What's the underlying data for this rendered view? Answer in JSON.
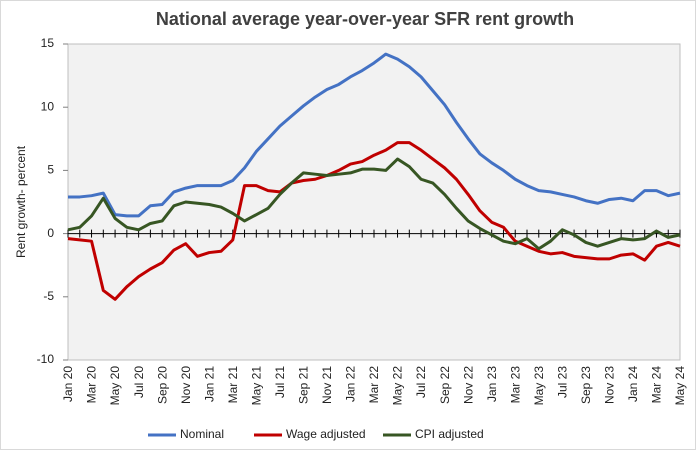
{
  "chart_data": {
    "type": "line",
    "title": "National average year-over-year SFR rent growth",
    "y_label": "Rent growth- percent",
    "categories": [
      "Jan 20",
      null,
      "Mar 20",
      null,
      "May 20",
      null,
      "Jul 20",
      null,
      "Sep 20",
      null,
      "Nov 20",
      null,
      "Jan 21",
      null,
      "Mar 21",
      null,
      "May 21",
      null,
      "Jul 21",
      null,
      "Sep 21",
      null,
      "Nov 21",
      null,
      "Jan 22",
      null,
      "Mar 22",
      null,
      "May 22",
      null,
      "Jul 22",
      null,
      "Sep 22",
      null,
      "Nov 22",
      null,
      "Jan 23",
      null,
      "Mar 23",
      null,
      "May 23",
      null,
      "Jul 23",
      null,
      "Sep 23",
      null,
      "Nov 23",
      null,
      "Jan 24",
      null,
      "Mar 24",
      null,
      "May 24"
    ],
    "series": [
      {
        "name": "Nominal",
        "color": "#4472c4",
        "values": [
          2.9,
          2.9,
          3.0,
          3.2,
          1.5,
          1.4,
          1.4,
          2.2,
          2.3,
          3.3,
          3.6,
          3.8,
          3.8,
          3.8,
          4.2,
          5.2,
          6.5,
          7.5,
          8.5,
          9.3,
          10.1,
          10.8,
          11.4,
          11.8,
          12.4,
          12.9,
          13.5,
          14.2,
          13.8,
          13.2,
          12.4,
          11.3,
          10.2,
          8.8,
          7.5,
          6.3,
          5.6,
          5.0,
          4.3,
          3.8,
          3.4,
          3.3,
          3.1,
          2.9,
          2.6,
          2.4,
          2.7,
          2.8,
          2.6,
          3.4,
          3.4,
          3.0,
          3.2
        ]
      },
      {
        "name": "Wage adjusted",
        "color": "#c00000",
        "values": [
          -0.4,
          -0.5,
          -0.6,
          -4.5,
          -5.2,
          -4.2,
          -3.4,
          -2.8,
          -2.3,
          -1.3,
          -0.8,
          -1.8,
          -1.5,
          -1.4,
          -0.5,
          3.8,
          3.8,
          3.4,
          3.3,
          4.0,
          4.2,
          4.3,
          4.6,
          5.0,
          5.5,
          5.7,
          6.2,
          6.6,
          7.2,
          7.2,
          6.6,
          5.9,
          5.2,
          4.3,
          3.1,
          1.8,
          0.9,
          0.5,
          -0.6,
          -1.0,
          -1.4,
          -1.6,
          -1.5,
          -1.8,
          -1.9,
          -2.0,
          -2.0,
          -1.7,
          -1.6,
          -2.1,
          -1.0,
          -0.7,
          -1.0
        ]
      },
      {
        "name": "CPI adjusted",
        "color": "#375623",
        "values": [
          0.3,
          0.5,
          1.4,
          2.8,
          1.2,
          0.5,
          0.3,
          0.8,
          1.0,
          2.2,
          2.5,
          2.4,
          2.3,
          2.1,
          1.6,
          1.0,
          1.5,
          2.0,
          3.1,
          4.0,
          4.8,
          4.7,
          4.6,
          4.7,
          4.8,
          5.1,
          5.1,
          5.0,
          5.9,
          5.3,
          4.3,
          4.0,
          3.1,
          2.0,
          1.0,
          0.4,
          -0.1,
          -0.6,
          -0.8,
          -0.4,
          -1.2,
          -0.6,
          0.3,
          -0.1,
          -0.7,
          -1.0,
          -0.7,
          -0.4,
          -0.5,
          -0.4,
          0.2,
          -0.3,
          -0.1
        ]
      }
    ],
    "ylim": [
      -10,
      15
    ],
    "yticks": [
      -10,
      -5,
      0,
      5,
      10,
      15
    ],
    "grid": false,
    "legend": "bottom"
  }
}
